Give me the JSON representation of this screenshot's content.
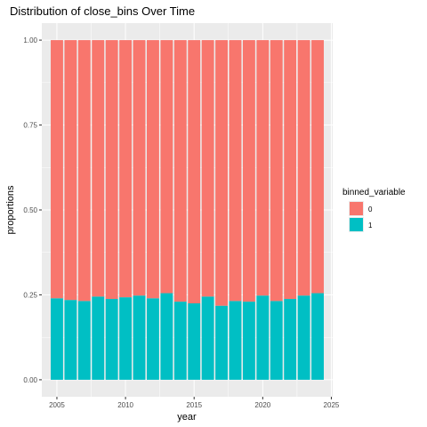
{
  "chart_data": {
    "type": "bar",
    "stacked": true,
    "title": "Distribution of close_bins Over Time",
    "xlabel": "year",
    "ylabel": "proportions",
    "x": [
      2005,
      2006,
      2007,
      2008,
      2009,
      2010,
      2011,
      2012,
      2013,
      2014,
      2015,
      2016,
      2017,
      2018,
      2019,
      2020,
      2021,
      2022,
      2023,
      2024
    ],
    "series": [
      {
        "name": "0",
        "color": "#F8766D",
        "values": [
          0.76,
          0.765,
          0.768,
          0.755,
          0.762,
          0.757,
          0.752,
          0.76,
          0.745,
          0.77,
          0.775,
          0.755,
          0.782,
          0.768,
          0.77,
          0.752,
          0.768,
          0.762,
          0.752,
          0.745
        ]
      },
      {
        "name": "1",
        "color": "#00BFC4",
        "values": [
          0.24,
          0.235,
          0.232,
          0.245,
          0.238,
          0.243,
          0.248,
          0.24,
          0.255,
          0.23,
          0.225,
          0.245,
          0.218,
          0.232,
          0.23,
          0.248,
          0.232,
          0.238,
          0.248,
          0.255
        ]
      }
    ],
    "xlim": [
      2003.9,
      2025.1
    ],
    "ylim": [
      -0.05,
      1.05
    ],
    "x_ticks": [
      "2005",
      "2010",
      "2015",
      "2020",
      "2025"
    ],
    "x_tick_values": [
      2005,
      2010,
      2015,
      2020,
      2025
    ],
    "y_ticks": [
      "0.00",
      "0.25",
      "0.50",
      "0.75",
      "1.00"
    ],
    "y_tick_values": [
      0,
      0.25,
      0.5,
      0.75,
      1.0
    ],
    "grid": true,
    "legend": {
      "title": "binned_variable",
      "position": "right",
      "entries": [
        "0",
        "1"
      ]
    },
    "panel_background": "#EBEBEB",
    "grid_color": "#FFFFFF"
  }
}
